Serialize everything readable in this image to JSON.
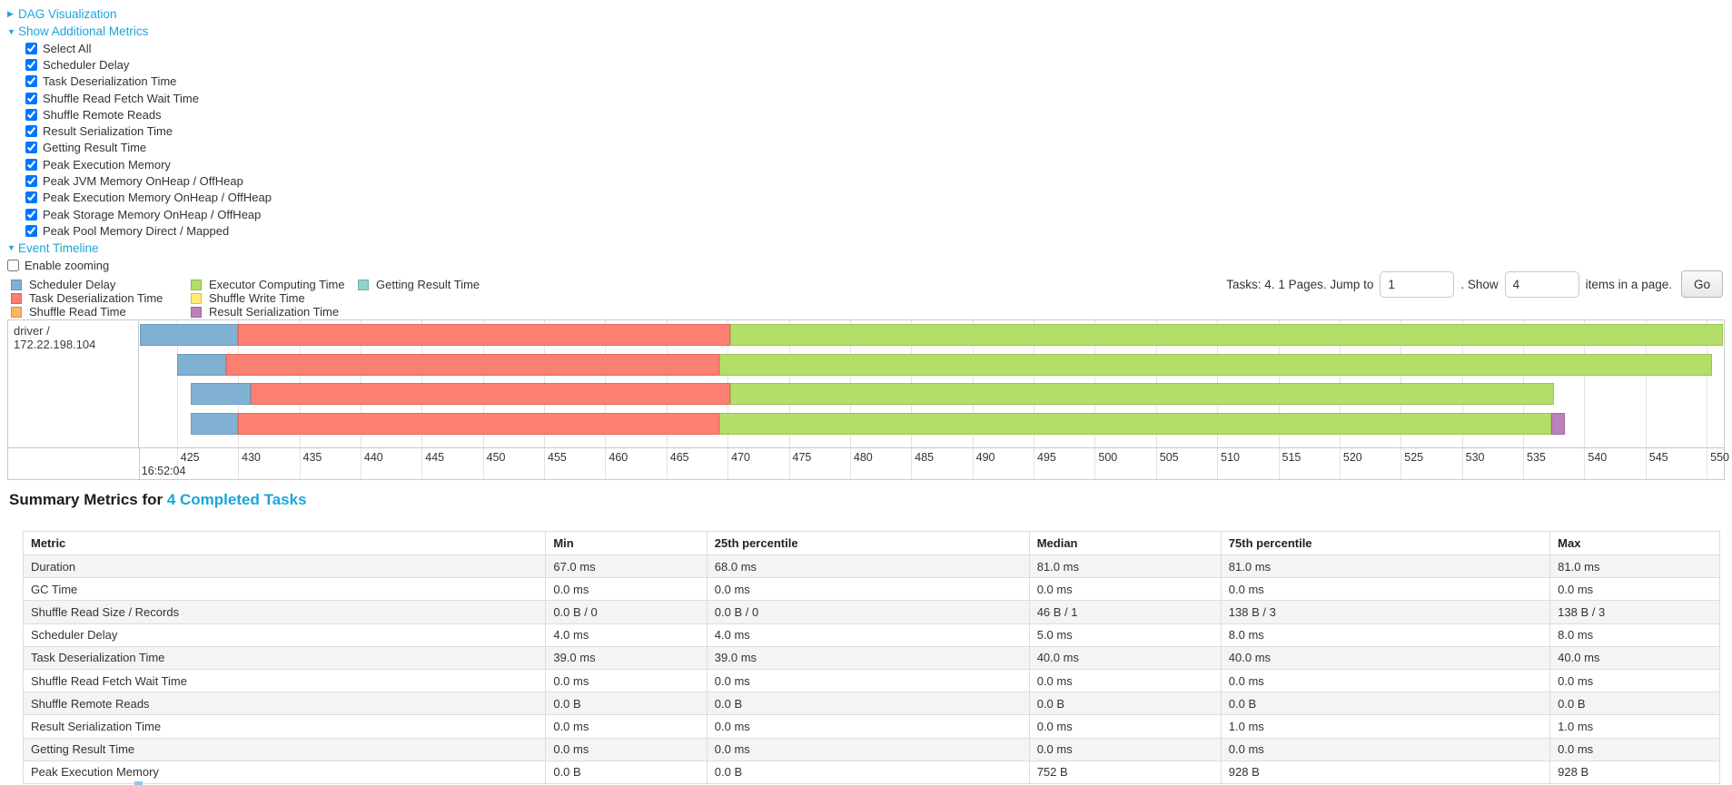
{
  "accent_color": "#1ba6dc",
  "sections": {
    "dag": {
      "label": "DAG Visualization",
      "collapsed": true
    },
    "metrics": {
      "label": "Show Additional Metrics",
      "collapsed": false,
      "items": [
        {
          "label": "Select All",
          "checked": true
        },
        {
          "label": "Scheduler Delay",
          "checked": true
        },
        {
          "label": "Task Deserialization Time",
          "checked": true
        },
        {
          "label": "Shuffle Read Fetch Wait Time",
          "checked": true
        },
        {
          "label": "Shuffle Remote Reads",
          "checked": true
        },
        {
          "label": "Result Serialization Time",
          "checked": true
        },
        {
          "label": "Getting Result Time",
          "checked": true
        },
        {
          "label": "Peak Execution Memory",
          "checked": true
        },
        {
          "label": "Peak JVM Memory OnHeap / OffHeap",
          "checked": true
        },
        {
          "label": "Peak Execution Memory OnHeap / OffHeap",
          "checked": true
        },
        {
          "label": "Peak Storage Memory OnHeap / OffHeap",
          "checked": true
        },
        {
          "label": "Peak Pool Memory Direct / Mapped",
          "checked": true
        }
      ]
    },
    "timeline": {
      "label": "Event Timeline",
      "collapsed": false,
      "enable_zooming_label": "Enable zooming",
      "enable_zooming_checked": false
    }
  },
  "pagination": {
    "prefix": "Tasks: 4. 1 Pages. Jump to",
    "jump_value": "1",
    "mid": ". Show",
    "show_value": "4",
    "suffix": "items in a page.",
    "go_label": "Go"
  },
  "chart_data": {
    "type": "timeline",
    "executor_label": "driver / 172.22.198.104",
    "axis": {
      "min": 421.9,
      "max": 551.4,
      "ticks": [
        425,
        430,
        435,
        440,
        445,
        450,
        455,
        460,
        465,
        470,
        475,
        480,
        485,
        490,
        495,
        500,
        505,
        510,
        515,
        520,
        525,
        530,
        535,
        540,
        545,
        550
      ],
      "start_time_label": "16:52:04"
    },
    "series": [
      {
        "name": "Scheduler Delay",
        "color": "#80B1D3",
        "border": "#6b9dc1"
      },
      {
        "name": "Task Deserialization Time",
        "color": "#FB8072",
        "border": "#e56a5d"
      },
      {
        "name": "Shuffle Read Time",
        "color": "#FDB462",
        "border": "#e09b49"
      },
      {
        "name": "Executor Computing Time",
        "color": "#B3DE69",
        "border": "#9cc254"
      },
      {
        "name": "Shuffle Write Time",
        "color": "#FFED6F",
        "border": "#e3d35b"
      },
      {
        "name": "Result Serialization Time",
        "color": "#BC80BD",
        "border": "#a56ba6"
      },
      {
        "name": "Getting Result Time",
        "color": "#8DD3C7",
        "border": "#76bfb2"
      }
    ],
    "tasks": [
      {
        "segments": [
          {
            "series": "Scheduler Delay",
            "start": 422.0,
            "end": 430.0
          },
          {
            "series": "Task Deserialization Time",
            "start": 430.0,
            "end": 470.2
          },
          {
            "series": "Executor Computing Time",
            "start": 470.2,
            "end": 551.3
          }
        ]
      },
      {
        "segments": [
          {
            "series": "Scheduler Delay",
            "start": 425.0,
            "end": 429.0
          },
          {
            "series": "Task Deserialization Time",
            "start": 429.0,
            "end": 469.3
          },
          {
            "series": "Executor Computing Time",
            "start": 469.3,
            "end": 550.4
          }
        ]
      },
      {
        "segments": [
          {
            "series": "Scheduler Delay",
            "start": 426.1,
            "end": 431.0
          },
          {
            "series": "Task Deserialization Time",
            "start": 431.0,
            "end": 470.2
          },
          {
            "series": "Executor Computing Time",
            "start": 470.2,
            "end": 537.5
          }
        ]
      },
      {
        "segments": [
          {
            "series": "Scheduler Delay",
            "start": 426.1,
            "end": 430.0
          },
          {
            "series": "Task Deserialization Time",
            "start": 430.0,
            "end": 469.3
          },
          {
            "series": "Executor Computing Time",
            "start": 469.3,
            "end": 537.3
          },
          {
            "series": "Result Serialization Time",
            "start": 537.3,
            "end": 538.4
          }
        ]
      }
    ]
  },
  "summary": {
    "title_prefix": "Summary Metrics for ",
    "title_link": "4 Completed Tasks",
    "table": {
      "headers": [
        "Metric",
        "Min",
        "25th percentile",
        "Median",
        "75th percentile",
        "Max"
      ],
      "rows": [
        [
          "Duration",
          "67.0 ms",
          "68.0 ms",
          "81.0 ms",
          "81.0 ms",
          "81.0 ms"
        ],
        [
          "GC Time",
          "0.0 ms",
          "0.0 ms",
          "0.0 ms",
          "0.0 ms",
          "0.0 ms"
        ],
        [
          "Shuffle Read Size / Records",
          "0.0 B / 0",
          "0.0 B / 0",
          "46 B / 1",
          "138 B / 3",
          "138 B / 3"
        ],
        [
          "Scheduler Delay",
          "4.0 ms",
          "4.0 ms",
          "5.0 ms",
          "8.0 ms",
          "8.0 ms"
        ],
        [
          "Task Deserialization Time",
          "39.0 ms",
          "39.0 ms",
          "40.0 ms",
          "40.0 ms",
          "40.0 ms"
        ],
        [
          "Shuffle Read Fetch Wait Time",
          "0.0 ms",
          "0.0 ms",
          "0.0 ms",
          "0.0 ms",
          "0.0 ms"
        ],
        [
          "Shuffle Remote Reads",
          "0.0 B",
          "0.0 B",
          "0.0 B",
          "0.0 B",
          "0.0 B"
        ],
        [
          "Result Serialization Time",
          "0.0 ms",
          "0.0 ms",
          "0.0 ms",
          "1.0 ms",
          "1.0 ms"
        ],
        [
          "Getting Result Time",
          "0.0 ms",
          "0.0 ms",
          "0.0 ms",
          "0.0 ms",
          "0.0 ms"
        ],
        [
          "Peak Execution Memory",
          "0.0 B",
          "0.0 B",
          "752 B",
          "928 B",
          "928 B"
        ]
      ]
    }
  }
}
